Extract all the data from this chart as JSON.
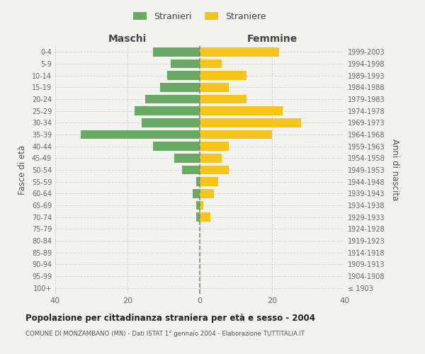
{
  "age_groups": [
    "100+",
    "95-99",
    "90-94",
    "85-89",
    "80-84",
    "75-79",
    "70-74",
    "65-69",
    "60-64",
    "55-59",
    "50-54",
    "45-49",
    "40-44",
    "35-39",
    "30-34",
    "25-29",
    "20-24",
    "15-19",
    "10-14",
    "5-9",
    "0-4"
  ],
  "birth_years": [
    "≤ 1903",
    "1904-1908",
    "1909-1913",
    "1914-1918",
    "1919-1923",
    "1924-1928",
    "1929-1933",
    "1934-1938",
    "1939-1943",
    "1944-1948",
    "1949-1953",
    "1954-1958",
    "1959-1963",
    "1964-1968",
    "1969-1973",
    "1974-1978",
    "1979-1983",
    "1984-1988",
    "1989-1993",
    "1994-1998",
    "1999-2003"
  ],
  "males": [
    0,
    0,
    0,
    0,
    0,
    0,
    1,
    1,
    2,
    1,
    5,
    7,
    13,
    33,
    16,
    18,
    15,
    11,
    9,
    8,
    13
  ],
  "females": [
    0,
    0,
    0,
    0,
    0,
    0,
    3,
    1,
    4,
    5,
    8,
    6,
    8,
    20,
    28,
    23,
    13,
    8,
    13,
    6,
    22
  ],
  "male_color": "#6aaa64",
  "female_color": "#f5c518",
  "background_color": "#f2f2f0",
  "grid_color": "#cccccc",
  "title": "Popolazione per cittadinanza straniera per età e sesso - 2004",
  "subtitle": "COMUNE DI MONZAMBANO (MN) - Dati ISTAT 1° gennaio 2004 - Elaborazione TUTTITALIA.IT",
  "left_label": "Maschi",
  "right_label": "Femmine",
  "ylabel_left": "Fasce di età",
  "ylabel_right": "Anni di nascita",
  "legend_stranieri": "Stranieri",
  "legend_straniere": "Straniere",
  "xlim": 40
}
